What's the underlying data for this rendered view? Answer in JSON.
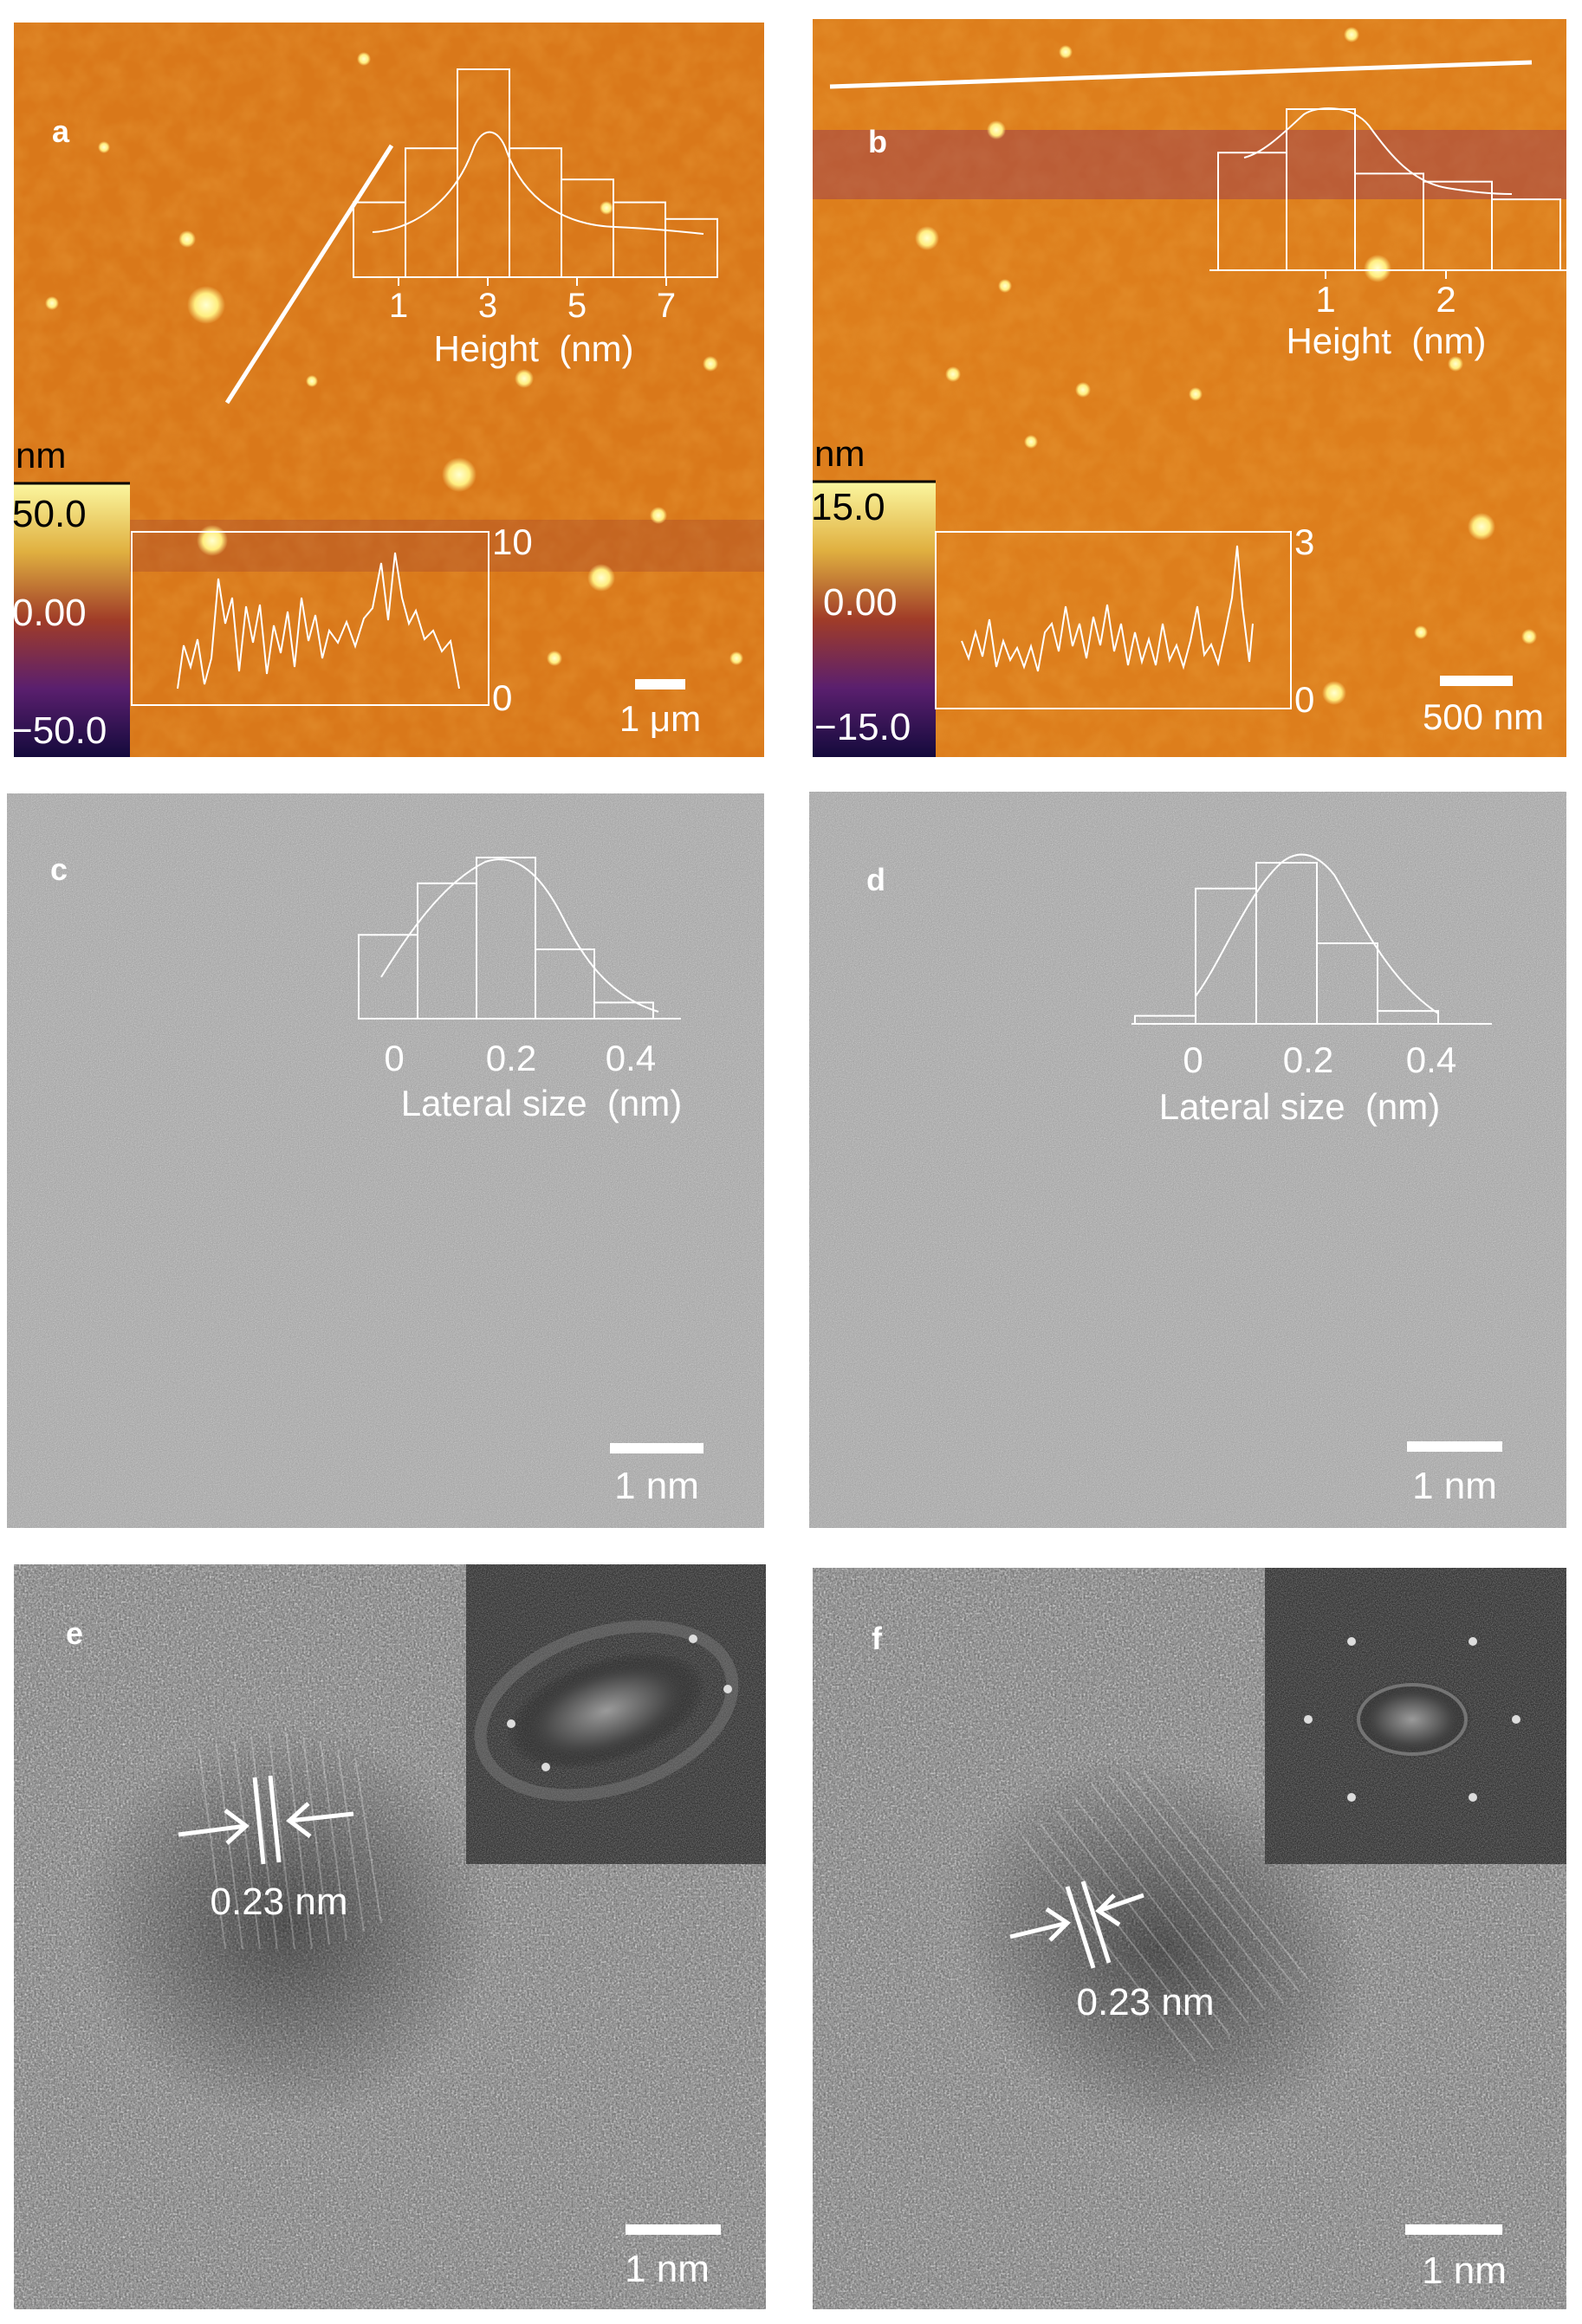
{
  "panels": {
    "a": {
      "letter": "a",
      "colorbar": {
        "unit": "nm",
        "max": "50.0",
        "mid": "0.00",
        "min": "−50.0"
      },
      "histogram": {
        "tick_labels": [
          "1",
          "3",
          "5",
          "7"
        ],
        "xlabel": "Height  (nm)"
      },
      "profile": {
        "ytick_top": "10",
        "ytick_bottom": "0"
      },
      "scalebar": "1 μm"
    },
    "b": {
      "letter": "b",
      "colorbar": {
        "unit": "nm",
        "max": "15.0",
        "mid": "0.00",
        "min": "−15.0"
      },
      "histogram": {
        "tick_labels": [
          "1",
          "2"
        ],
        "xlabel": "Height  (nm)"
      },
      "profile": {
        "ytick_top": "3",
        "ytick_bottom": "0"
      },
      "scalebar": "500 nm"
    },
    "c": {
      "letter": "c",
      "histogram": {
        "tick_labels": [
          "0",
          "0.2",
          "0.4"
        ],
        "xlabel": "Lateral size  (nm)"
      },
      "scalebar": "1 nm"
    },
    "d": {
      "letter": "d",
      "histogram": {
        "tick_labels": [
          "0",
          "0.2",
          "0.4"
        ],
        "xlabel": "Lateral size  (nm)"
      },
      "scalebar": "1 nm"
    },
    "e": {
      "letter": "e",
      "lattice_label": "0.23 nm",
      "scalebar": "1 nm"
    },
    "f": {
      "letter": "f",
      "lattice_label": "0.23 nm",
      "scalebar": "1 nm"
    }
  },
  "chart_data": [
    {
      "panel": "a",
      "type": "bar",
      "x": [
        1,
        2,
        3,
        4,
        5,
        6,
        7
      ],
      "values": [
        0.36,
        0.62,
        1.0,
        0.62,
        0.47,
        0.36,
        0.28
      ],
      "fit": "gaussian"
    },
    {
      "panel": "b",
      "type": "bar",
      "x": [
        0.5,
        1.0,
        1.5,
        2.0,
        2.5
      ],
      "values": [
        0.73,
        1.0,
        0.6,
        0.55,
        0.44
      ],
      "fit": "lognormal"
    },
    {
      "panel": "c",
      "type": "bar",
      "x": [
        0.0,
        0.1,
        0.2,
        0.3,
        0.4
      ],
      "values": [
        0.52,
        0.84,
        1.0,
        0.43,
        0.1
      ],
      "fit": "gaussian"
    },
    {
      "panel": "d",
      "type": "bar",
      "x": [
        0.0,
        0.1,
        0.2,
        0.3,
        0.4
      ],
      "values": [
        0.05,
        0.84,
        1.0,
        0.5,
        0.08
      ],
      "fit": "gaussian"
    }
  ]
}
